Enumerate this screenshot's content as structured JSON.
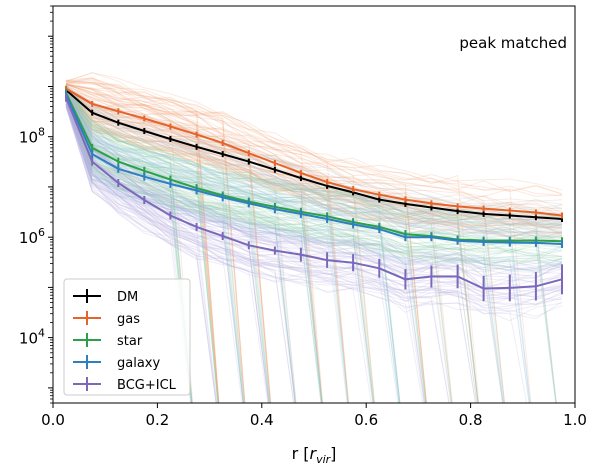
{
  "chart_data": {
    "type": "line",
    "title": "",
    "annotation": "peak matched",
    "xlabel": "r [r_vir]",
    "xlabel_main": "r [",
    "xlabel_sym": "r",
    "xlabel_sub": "vir",
    "xlabel_close": "]",
    "ylabel": "",
    "yscale": "log",
    "xlim": [
      0.0,
      1.0
    ],
    "ylim": [
      500,
      40000000000
    ],
    "grid": false,
    "legend_position": "lower-left",
    "x_ticks": [
      {
        "value": 0.0,
        "label": "0.0"
      },
      {
        "value": 0.2,
        "label": "0.2"
      },
      {
        "value": 0.4,
        "label": "0.4"
      },
      {
        "value": 0.6,
        "label": "0.6"
      },
      {
        "value": 0.8,
        "label": "0.8"
      },
      {
        "value": 1.0,
        "label": "1.0"
      }
    ],
    "y_ticks": [
      {
        "value": 10000,
        "base": "10",
        "exp": "4"
      },
      {
        "value": 1000000,
        "base": "10",
        "exp": "6"
      },
      {
        "value": 100000000,
        "base": "10",
        "exp": "8"
      }
    ],
    "x": [
      0.025,
      0.075,
      0.125,
      0.175,
      0.225,
      0.275,
      0.325,
      0.375,
      0.425,
      0.475,
      0.525,
      0.575,
      0.625,
      0.675,
      0.725,
      0.775,
      0.825,
      0.875,
      0.925,
      0.975
    ],
    "series": [
      {
        "name": "DM",
        "color": "#000000",
        "values": [
          850000000,
          300000000,
          190000000,
          130000000,
          90000000,
          63000000,
          45000000,
          32000000,
          22000000,
          15000000,
          10500000,
          7800000,
          5600000,
          4600000,
          3900000,
          3300000,
          2900000,
          2700000,
          2500000,
          2300000
        ]
      },
      {
        "name": "gas",
        "color": "#e6642a",
        "values": [
          900000000,
          450000000,
          320000000,
          230000000,
          160000000,
          110000000,
          75000000,
          47000000,
          30000000,
          19000000,
          12500000,
          9000000,
          7000000,
          5600000,
          4700000,
          4100000,
          3700000,
          3400000,
          3100000,
          2700000
        ]
      },
      {
        "name": "star",
        "color": "#2ca048",
        "values": [
          750000000,
          60000000,
          32000000,
          21000000,
          14000000,
          9500000,
          6800000,
          5100000,
          4000000,
          3200000,
          2600000,
          2000000,
          1600000,
          1150000,
          1050000,
          900000,
          860000,
          850000,
          860000,
          830000
        ]
      },
      {
        "name": "galaxy",
        "color": "#2e7fc0",
        "values": [
          700000000,
          45000000,
          23000000,
          16000000,
          11500000,
          8500000,
          6200000,
          4700000,
          3600000,
          2900000,
          2300000,
          1800000,
          1450000,
          1000000,
          1000000,
          850000,
          800000,
          780000,
          770000,
          730000
        ]
      },
      {
        "name": "BCG+ICL",
        "color": "#7b68bb",
        "values": [
          600000000,
          32000000,
          12000000,
          5500000,
          2700000,
          1600000,
          1050000,
          690000,
          540000,
          450000,
          350000,
          310000,
          240000,
          145000,
          165000,
          165000,
          95000,
          98000,
          105000,
          145000
        ]
      }
    ]
  }
}
